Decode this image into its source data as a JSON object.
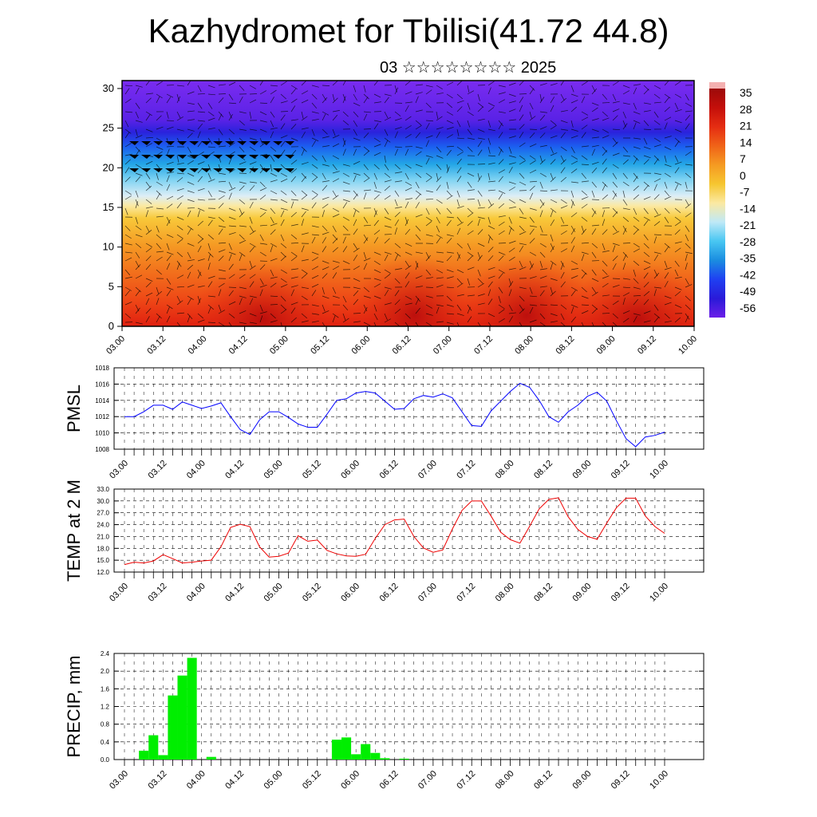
{
  "title": "Kazhydromet for Tbilisi(41.72 44.8)",
  "subtitle": "03 ☆☆☆☆☆☆☆☆ 2025",
  "x_ticks": [
    "03.00",
    "03.12",
    "04.00",
    "04.12",
    "05.00",
    "05.12",
    "06.00",
    "06.12",
    "07.00",
    "07.12",
    "08.00",
    "08.12",
    "09.00",
    "09.12",
    "10.00"
  ],
  "chart_data": [
    {
      "type": "heatmap",
      "yticks": [
        "0",
        "5",
        "10",
        "15",
        "20",
        "25",
        "30"
      ],
      "ylim": [
        0,
        31
      ],
      "colorbar": {
        "labels": [
          "35",
          "28",
          "21",
          "14",
          "7",
          "0",
          "-7",
          "-14",
          "-21",
          "-28",
          "-35",
          "-42",
          "-49",
          "-56"
        ],
        "colors": [
          "#6b1ee8",
          "#2a1ad8",
          "#1f40f2",
          "#1a8de0",
          "#48c6f2",
          "#bfe9f7",
          "#fbe9a2",
          "#f6c630",
          "#f59a22",
          "#f06318",
          "#e52d12",
          "#c40f0a",
          "#9c0a0a"
        ]
      }
    },
    {
      "type": "line",
      "ylabel": "PMSL",
      "ylim": [
        1008,
        1018
      ],
      "yticks": [
        "1018",
        "1016",
        "1014",
        "1012",
        "1010",
        "1008"
      ],
      "color": "#0000ff",
      "x": [
        0,
        1,
        2,
        3,
        4,
        5,
        6,
        7,
        8,
        9,
        10,
        11,
        12,
        13,
        14,
        15,
        16,
        17,
        18,
        19,
        20,
        21,
        22,
        23,
        24,
        25,
        26,
        27,
        28,
        29,
        30,
        31,
        32,
        33,
        34,
        35,
        36,
        37,
        38,
        39,
        40,
        41,
        42,
        43,
        44,
        45,
        46,
        47,
        48,
        49,
        50,
        51,
        52,
        53,
        54,
        55,
        56
      ],
      "values": [
        1012.0,
        1012.0,
        1012.6,
        1013.4,
        1013.4,
        1012.9,
        1013.8,
        1013.4,
        1013.0,
        1013.3,
        1013.7,
        1012.0,
        1010.4,
        1009.8,
        1011.6,
        1012.6,
        1012.6,
        1011.9,
        1011.1,
        1010.7,
        1010.7,
        1012.3,
        1014.0,
        1014.2,
        1014.9,
        1015.1,
        1014.9,
        1013.9,
        1012.9,
        1013.0,
        1014.2,
        1014.6,
        1014.4,
        1014.8,
        1014.3,
        1012.6,
        1010.9,
        1010.8,
        1012.7,
        1013.9,
        1015.1,
        1016.1,
        1015.6,
        1014.0,
        1012.0,
        1011.3,
        1012.6,
        1013.4,
        1014.5,
        1015.0,
        1013.9,
        1011.5,
        1009.3,
        1008.3,
        1009.5,
        1009.7,
        1010.1
      ]
    },
    {
      "type": "line",
      "ylabel": "TEMP at 2 M",
      "ylim": [
        12,
        33
      ],
      "yticks": [
        "33.0",
        "30.0",
        "27.0",
        "24.0",
        "21.0",
        "18.0",
        "15.0",
        "12.0"
      ],
      "color": "#ee0000",
      "x": [
        0,
        1,
        2,
        3,
        4,
        5,
        6,
        7,
        8,
        9,
        10,
        11,
        12,
        13,
        14,
        15,
        16,
        17,
        18,
        19,
        20,
        21,
        22,
        23,
        24,
        25,
        26,
        27,
        28,
        29,
        30,
        31,
        32,
        33,
        34,
        35,
        36,
        37,
        38,
        39,
        40,
        41,
        42,
        43,
        44,
        45,
        46,
        47,
        48,
        49,
        50,
        51,
        52,
        53,
        54,
        55,
        56
      ],
      "values": [
        13.9,
        14.5,
        14.3,
        14.8,
        16.4,
        15.4,
        14.3,
        14.5,
        14.8,
        15.0,
        18.4,
        23.3,
        24.1,
        23.5,
        18.4,
        15.8,
        16.0,
        16.8,
        21.2,
        19.8,
        20.1,
        17.5,
        16.6,
        16.1,
        16.0,
        16.5,
        20.5,
        24.0,
        25.2,
        25.4,
        21.0,
        18.1,
        17.0,
        17.6,
        22.9,
        27.6,
        30.0,
        30.0,
        26.2,
        22.1,
        20.2,
        19.3,
        23.6,
        28.0,
        30.4,
        30.8,
        26.0,
        22.8,
        21.0,
        20.3,
        24.4,
        28.3,
        30.7,
        30.7,
        26.2,
        23.5,
        21.8
      ]
    },
    {
      "type": "bar",
      "ylabel": "PRECIP, mm",
      "ylim": [
        0,
        2.4
      ],
      "yticks": [
        "2.4",
        "2.0",
        "1.6",
        "1.2",
        "0.8",
        "0.4",
        "0.0"
      ],
      "color": "#00ee00",
      "x": [
        0,
        1,
        2,
        3,
        4,
        5,
        6,
        7,
        8,
        9,
        10,
        11,
        12,
        13,
        14,
        15,
        16,
        17,
        18,
        19,
        20,
        21,
        22,
        23,
        24,
        25,
        26,
        27,
        28,
        29,
        30,
        31,
        32,
        33,
        34,
        35,
        36,
        37,
        38,
        39,
        40,
        41,
        42,
        43,
        44,
        45,
        46,
        47,
        48,
        49,
        50,
        51,
        52,
        53,
        54,
        55,
        56
      ],
      "values": [
        0,
        0,
        0.2,
        0.55,
        0.1,
        1.45,
        1.9,
        2.3,
        0,
        0.06,
        0,
        0,
        0,
        0,
        0,
        0,
        0,
        0,
        0,
        0,
        0,
        0,
        0.45,
        0.5,
        0.12,
        0.35,
        0.15,
        0.03,
        0,
        0.02,
        0,
        0,
        0,
        0,
        0,
        0,
        0,
        0,
        0,
        0,
        0,
        0,
        0,
        0,
        0,
        0,
        0,
        0,
        0,
        0,
        0,
        0,
        0,
        0,
        0,
        0,
        0
      ]
    }
  ]
}
